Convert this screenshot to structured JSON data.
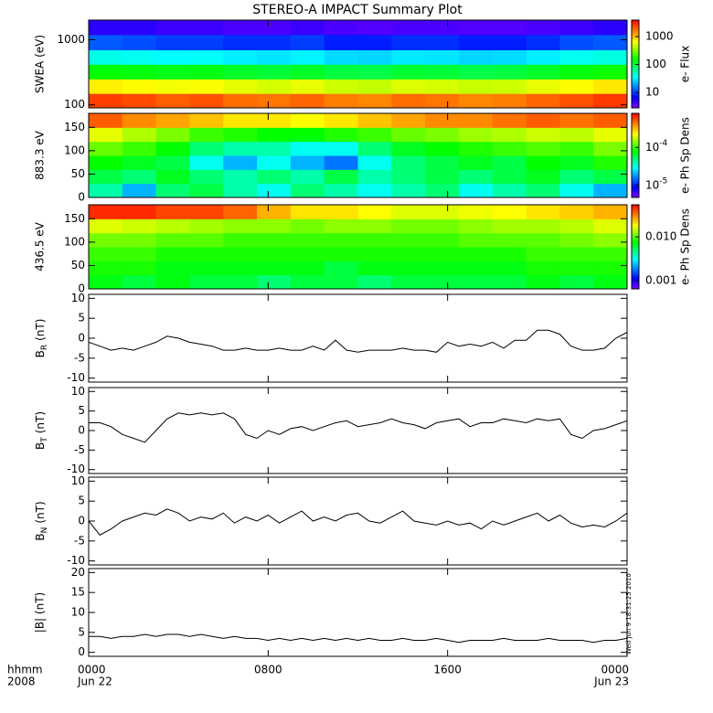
{
  "title": "STEREO-A IMPACT Summary Plot",
  "xlim": [
    0,
    24
  ],
  "xticks": [
    {
      "value": 0,
      "label": "0000"
    },
    {
      "value": 8,
      "label": "0800"
    },
    {
      "value": 16,
      "label": "1600"
    },
    {
      "value": 24,
      "label": "0000"
    }
  ],
  "x_dates": [
    {
      "value": 0,
      "label": "Jun 22"
    },
    {
      "value": 24,
      "label": "Jun 23"
    }
  ],
  "x_caption": [
    "hhmm",
    "2008"
  ],
  "timestamp": "Wed Jun  9 18:31:25 2010",
  "chart_data": [
    {
      "type": "heatmap",
      "ylabel": "SWEA (eV)",
      "log_y": true,
      "ylim": [
        90,
        2000
      ],
      "yticks": [
        100,
        1000
      ],
      "colorbar_label": "e- Flux",
      "clim": [
        2.8,
        3900
      ],
      "clog": true,
      "cticks": [
        10,
        100,
        1000
      ],
      "xbins": [
        0,
        1.5,
        3,
        4.5,
        6,
        7.5,
        9,
        10.5,
        12,
        13.5,
        15,
        16.5,
        18,
        19.5,
        21,
        22.5,
        24
      ],
      "ybins": [
        90,
        150,
        250,
        420,
        700,
        1200,
        2000
      ],
      "z": [
        [
          2500,
          2300,
          2000,
          2200,
          1800,
          1700,
          1900,
          1600,
          1500,
          1800,
          1700,
          1500,
          1600,
          1900,
          2200,
          2600
        ],
        [
          700,
          650,
          600,
          620,
          550,
          500,
          560,
          480,
          450,
          520,
          500,
          460,
          480,
          560,
          650,
          750
        ],
        [
          150,
          140,
          130,
          135,
          120,
          110,
          120,
          105,
          100,
          115,
          110,
          100,
          105,
          120,
          140,
          160
        ],
        [
          40,
          38,
          35,
          36,
          32,
          30,
          33,
          28,
          27,
          31,
          30,
          27,
          28,
          32,
          38,
          42
        ],
        [
          12,
          11,
          10,
          10,
          9,
          9,
          10,
          8,
          8,
          9,
          9,
          8,
          8,
          9,
          11,
          12
        ],
        [
          5,
          5,
          4.5,
          4.5,
          4,
          4,
          4.5,
          4,
          3.8,
          4,
          4,
          3.8,
          3.8,
          4,
          4.5,
          5
        ]
      ]
    },
    {
      "type": "heatmap",
      "ylabel": "883.3 eV",
      "ylim": [
        0,
        180
      ],
      "yticks": [
        0,
        50,
        100,
        150
      ],
      "colorbar_label": "e- Ph Sp Dens",
      "clim": [
        4.7e-06,
        0.0008
      ],
      "clog": true,
      "cticks": [
        {
          "value": 1e-05,
          "label": "10",
          "exponent": "-5"
        },
        {
          "value": 0.0001,
          "label": "10",
          "exponent": "-4"
        }
      ],
      "xbins": [
        0,
        1.5,
        3,
        4.5,
        6,
        7.5,
        9,
        10.5,
        12,
        13.5,
        15,
        16.5,
        18,
        19.5,
        21,
        22.5,
        24
      ],
      "ybins": [
        0,
        30,
        60,
        90,
        120,
        150,
        180
      ],
      "z": [
        [
          4e-05,
          2e-05,
          5e-05,
          6e-05,
          4e-05,
          3e-05,
          5e-05,
          4e-05,
          3e-05,
          4e-05,
          5e-05,
          3e-05,
          4e-05,
          5e-05,
          3e-05,
          2e-05
        ],
        [
          6e-05,
          5e-05,
          7e-05,
          5e-05,
          4e-05,
          5e-05,
          4e-05,
          6e-05,
          4e-05,
          5e-05,
          6e-05,
          5e-05,
          6e-05,
          7e-05,
          5e-05,
          6e-05
        ],
        [
          8e-05,
          7e-05,
          6e-05,
          3e-05,
          2e-05,
          3e-05,
          2e-05,
          1.5e-05,
          3e-05,
          5e-05,
          6e-05,
          7e-05,
          6e-05,
          8e-05,
          7e-05,
          9e-05
        ],
        [
          0.00012,
          0.0001,
          8e-05,
          5e-05,
          4e-05,
          4e-05,
          3e-05,
          3e-05,
          5e-05,
          7e-05,
          8e-05,
          9e-05,
          0.0001,
          0.00011,
          0.0001,
          0.00013
        ],
        [
          0.0002,
          0.00016,
          0.00013,
          0.0001,
          9e-05,
          8e-05,
          8e-05,
          9e-05,
          0.0001,
          0.00012,
          0.00013,
          0.00015,
          0.00016,
          0.00018,
          0.00017,
          0.0002
        ],
        [
          0.0005,
          0.0004,
          0.00035,
          0.0003,
          0.00025,
          0.00025,
          0.00022,
          0.00025,
          0.0003,
          0.00035,
          0.0004,
          0.0004,
          0.00045,
          0.0005,
          0.00045,
          0.0005
        ]
      ]
    },
    {
      "type": "heatmap",
      "ylabel": "436.5 eV",
      "ylim": [
        0,
        180
      ],
      "yticks": [
        0,
        50,
        100,
        150
      ],
      "colorbar_label": "e- Ph Sp Dens",
      "clim": [
        0.00065,
        0.054
      ],
      "clog": true,
      "cticks": [
        {
          "value": 0.001,
          "label": "0.001"
        },
        {
          "value": 0.01,
          "label": "0.010"
        }
      ],
      "xbins": [
        0,
        1.5,
        3,
        4.5,
        6,
        7.5,
        9,
        10.5,
        12,
        13.5,
        15,
        16.5,
        18,
        19.5,
        21,
        22.5,
        24
      ],
      "ybins": [
        0,
        30,
        60,
        90,
        120,
        150,
        180
      ],
      "z": [
        [
          0.007,
          0.006,
          0.007,
          0.006,
          0.006,
          0.005,
          0.006,
          0.006,
          0.005,
          0.006,
          0.006,
          0.006,
          0.006,
          0.007,
          0.006,
          0.007
        ],
        [
          0.008,
          0.008,
          0.007,
          0.007,
          0.007,
          0.007,
          0.007,
          0.006,
          0.007,
          0.007,
          0.007,
          0.007,
          0.007,
          0.008,
          0.008,
          0.008
        ],
        [
          0.009,
          0.009,
          0.008,
          0.008,
          0.008,
          0.008,
          0.008,
          0.008,
          0.008,
          0.008,
          0.008,
          0.008,
          0.008,
          0.009,
          0.009,
          0.009
        ],
        [
          0.011,
          0.011,
          0.01,
          0.01,
          0.009,
          0.009,
          0.009,
          0.009,
          0.009,
          0.009,
          0.009,
          0.01,
          0.01,
          0.01,
          0.011,
          0.012
        ],
        [
          0.016,
          0.015,
          0.014,
          0.013,
          0.012,
          0.012,
          0.011,
          0.012,
          0.012,
          0.011,
          0.011,
          0.012,
          0.013,
          0.013,
          0.014,
          0.016
        ],
        [
          0.045,
          0.045,
          0.04,
          0.04,
          0.035,
          0.025,
          0.02,
          0.02,
          0.018,
          0.016,
          0.016,
          0.017,
          0.018,
          0.02,
          0.022,
          0.025
        ]
      ]
    },
    {
      "type": "line",
      "ylabel": "B",
      "ylabel_sub": "R",
      "ylabel_unit": "(nT)",
      "ylim": [
        -11,
        11
      ],
      "yticks": [
        -10,
        -5,
        0,
        5,
        10
      ],
      "color": "#000000",
      "x": [
        0,
        0.5,
        1,
        1.5,
        2,
        2.5,
        3,
        3.5,
        4,
        4.5,
        5,
        5.5,
        6,
        6.5,
        7,
        7.5,
        8,
        8.5,
        9,
        9.5,
        10,
        10.5,
        11,
        11.5,
        12,
        12.5,
        13,
        13.5,
        14,
        14.5,
        15,
        15.5,
        16,
        16.5,
        17,
        17.5,
        18,
        18.5,
        19,
        19.5,
        20,
        20.5,
        21,
        21.5,
        22,
        22.5,
        23,
        23.5,
        24
      ],
      "values": [
        -1,
        -2,
        -3,
        -2.5,
        -3,
        -2,
        -1,
        0.5,
        0,
        -1,
        -1.5,
        -2,
        -3,
        -3,
        -2.5,
        -3,
        -3,
        -2.5,
        -3,
        -3,
        -2,
        -3,
        -0.5,
        -3,
        -3.5,
        -3,
        -3,
        -3,
        -2.5,
        -3,
        -3,
        -3.5,
        -1,
        -2,
        -1.5,
        -2,
        -1,
        -2.5,
        -0.5,
        -0.5,
        2,
        2,
        1,
        -2,
        -3,
        -3,
        -2.5,
        0,
        1.5
      ]
    },
    {
      "type": "line",
      "ylabel": "B",
      "ylabel_sub": "T",
      "ylabel_unit": "(nT)",
      "ylim": [
        -11,
        11
      ],
      "yticks": [
        -10,
        -5,
        0,
        5,
        10
      ],
      "color": "#000000",
      "x": [
        0,
        0.5,
        1,
        1.5,
        2,
        2.5,
        3,
        3.5,
        4,
        4.5,
        5,
        5.5,
        6,
        6.5,
        7,
        7.5,
        8,
        8.5,
        9,
        9.5,
        10,
        10.5,
        11,
        11.5,
        12,
        12.5,
        13,
        13.5,
        14,
        14.5,
        15,
        15.5,
        16,
        16.5,
        17,
        17.5,
        18,
        18.5,
        19,
        19.5,
        20,
        20.5,
        21,
        21.5,
        22,
        22.5,
        23,
        23.5,
        24
      ],
      "values": [
        2,
        2,
        1,
        -1,
        -2,
        -3,
        0,
        3,
        4.5,
        4,
        4.5,
        4,
        4.5,
        3,
        -1,
        -2,
        0,
        -1,
        0.5,
        1,
        0,
        1,
        2,
        2.5,
        1,
        1.5,
        2,
        3,
        2,
        1.5,
        0.5,
        2,
        2.5,
        3,
        1,
        2,
        2,
        3,
        2.5,
        2,
        3,
        2.5,
        3,
        -1,
        -2,
        0,
        0.5,
        1.5,
        2.5
      ]
    },
    {
      "type": "line",
      "ylabel": "B",
      "ylabel_sub": "N",
      "ylabel_unit": "(nT)",
      "ylim": [
        -11,
        11
      ],
      "yticks": [
        -10,
        -5,
        0,
        5,
        10
      ],
      "color": "#000000",
      "x": [
        0,
        0.5,
        1,
        1.5,
        2,
        2.5,
        3,
        3.5,
        4,
        4.5,
        5,
        5.5,
        6,
        6.5,
        7,
        7.5,
        8,
        8.5,
        9,
        9.5,
        10,
        10.5,
        11,
        11.5,
        12,
        12.5,
        13,
        13.5,
        14,
        14.5,
        15,
        15.5,
        16,
        16.5,
        17,
        17.5,
        18,
        18.5,
        19,
        19.5,
        20,
        20.5,
        21,
        21.5,
        22,
        22.5,
        23,
        23.5,
        24
      ],
      "values": [
        0,
        -3.5,
        -2,
        0,
        1,
        2,
        1.5,
        3,
        2,
        0,
        1,
        0.5,
        2,
        -0.5,
        1,
        0,
        1.5,
        -0.5,
        1,
        2.5,
        0,
        1,
        0,
        1.5,
        2,
        0,
        -0.5,
        1,
        2.5,
        0,
        -0.5,
        -1,
        0,
        -1,
        -0.5,
        -2,
        0,
        -1,
        0,
        1,
        2,
        0,
        1.5,
        -0.5,
        -1.5,
        -1,
        -1.5,
        0,
        2
      ]
    },
    {
      "type": "line",
      "ylabel": "|B| (nT)",
      "ylim": [
        -1,
        21
      ],
      "yticks": [
        0,
        5,
        10,
        15,
        20
      ],
      "color": "#000000",
      "x": [
        0,
        0.5,
        1,
        1.5,
        2,
        2.5,
        3,
        3.5,
        4,
        4.5,
        5,
        5.5,
        6,
        6.5,
        7,
        7.5,
        8,
        8.5,
        9,
        9.5,
        10,
        10.5,
        11,
        11.5,
        12,
        12.5,
        13,
        13.5,
        14,
        14.5,
        15,
        15.5,
        16,
        16.5,
        17,
        17.5,
        18,
        18.5,
        19,
        19.5,
        20,
        20.5,
        21,
        21.5,
        22,
        22.5,
        23,
        23.5,
        24
      ],
      "values": [
        4,
        4,
        3.5,
        4,
        4,
        4.5,
        4,
        4.5,
        4.5,
        4,
        4.5,
        4,
        3.5,
        4,
        3.5,
        3.5,
        3,
        3.5,
        3,
        3.5,
        3,
        3.5,
        3,
        3.5,
        3,
        3.5,
        3,
        3,
        3.5,
        3,
        3,
        3.5,
        3,
        2.5,
        3,
        3,
        3,
        3.5,
        3,
        3,
        3,
        3.5,
        3,
        3,
        3,
        2.5,
        3,
        3,
        3.5
      ]
    }
  ]
}
